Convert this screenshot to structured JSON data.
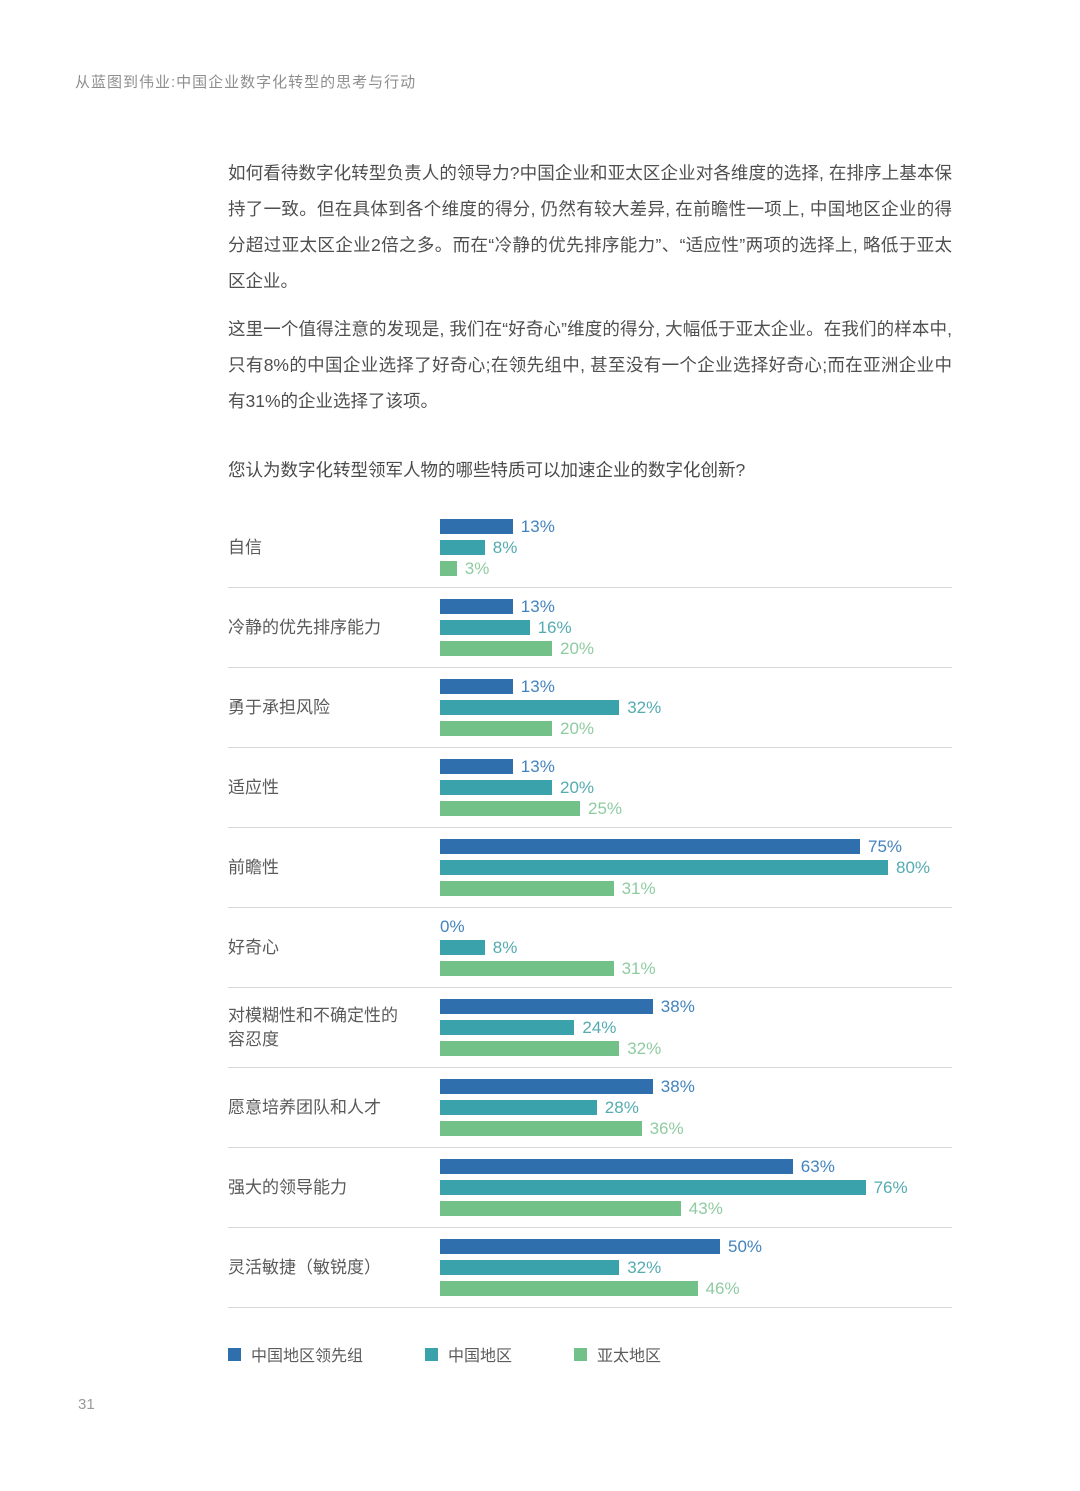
{
  "page": {
    "header": "从蓝图到伟业:中国企业数字化转型的思考与行动",
    "page_number": "31"
  },
  "paragraphs": [
    "如何看待数字化转型负责人的领导力?中国企业和亚太区企业对各维度的选择, 在排序上基本保持了一致。但在具体到各个维度的得分, 仍然有较大差异, 在前瞻性一项上, 中国地区企业的得分超过亚太区企业2倍之多。而在“冷静的优先排序能力”、“适应性”两项的选择上, 略低于亚太区企业。",
    "这里一个值得注意的发现是, 我们在“好奇心”维度的得分, 大幅低于亚太企业。在我们的样本中, 只有8%的中国企业选择了好奇心;在领先组中, 甚至没有一个企业选择好奇心;而在亚洲企业中有31%的企业选择了该项。"
  ],
  "chart_data": {
    "type": "bar",
    "orientation": "horizontal",
    "title": "您认为数字化转型领军人物的哪些特质可以加速企业的数字化创新?",
    "categories": [
      "自信",
      "冷静的优先排序能力",
      "勇于承担风险",
      "适应性",
      "前瞻性",
      "好奇心",
      "对模糊性和不确定性的容忍度",
      "愿意培养团队和人才",
      "强大的领导能力",
      "灵活敏捷（敏锐度）"
    ],
    "series": [
      {
        "name": "中国地区领先组",
        "key": "china-leaders",
        "color": "#2F6FAE",
        "label_color": "#4383BE",
        "values": [
          13,
          13,
          13,
          13,
          75,
          0,
          38,
          38,
          63,
          50
        ]
      },
      {
        "name": "中国地区",
        "key": "china",
        "color": "#3AA2AA",
        "label_color": "#54ABB1",
        "values": [
          8,
          16,
          32,
          20,
          80,
          8,
          24,
          28,
          76,
          32
        ]
      },
      {
        "name": "亚太地区",
        "key": "apac",
        "color": "#72C189",
        "label_color": "#8FCBA1",
        "values": [
          3,
          20,
          20,
          25,
          31,
          31,
          32,
          36,
          43,
          46
        ]
      }
    ],
    "value_suffix": "%",
    "xlim": [
      0,
      100
    ],
    "grid": false,
    "legend_position": "bottom"
  }
}
